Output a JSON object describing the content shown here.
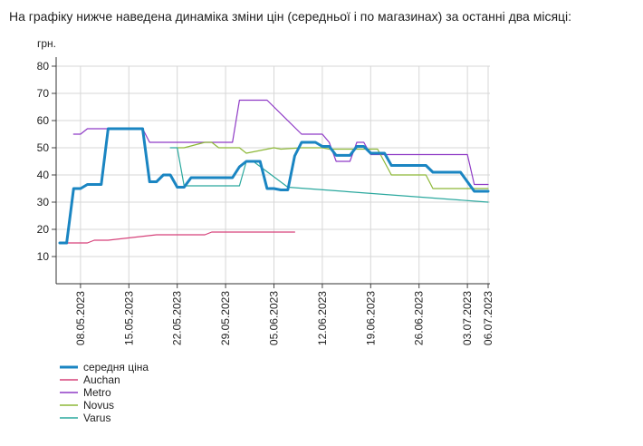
{
  "intro_text": "На графіку нижче наведена динаміка зміни цін (середньої і по магазинах) за останні два місяці:",
  "chart_data": {
    "type": "line",
    "ylabel": "грн.",
    "ylim": [
      0,
      80
    ],
    "yticks": [
      10,
      20,
      30,
      40,
      50,
      60,
      70,
      80
    ],
    "x_start": "2023-05-05",
    "x_end": "2023-07-06",
    "xticks": [
      "08.05.2023",
      "15.05.2023",
      "22.05.2023",
      "29.05.2023",
      "05.06.2023",
      "12.06.2023",
      "19.06.2023",
      "26.06.2023",
      "03.07.2023",
      "06.07.2023"
    ],
    "grid": true,
    "legend_position": "bottom-left",
    "colors": {
      "середня ціна": "#1a85c2",
      "Auchan": "#d6427a",
      "Metro": "#8f3bc6",
      "Novus": "#8db838",
      "Varus": "#2aa89e"
    },
    "series": [
      {
        "name": "середня ціна",
        "x": [
          "2023-05-05",
          "2023-05-06",
          "2023-05-07",
          "2023-05-08",
          "2023-05-09",
          "2023-05-10",
          "2023-05-11",
          "2023-05-12",
          "2023-05-13",
          "2023-05-14",
          "2023-05-15",
          "2023-05-16",
          "2023-05-17",
          "2023-05-18",
          "2023-05-19",
          "2023-05-20",
          "2023-05-21",
          "2023-05-22",
          "2023-05-23",
          "2023-05-24",
          "2023-05-25",
          "2023-05-26",
          "2023-05-27",
          "2023-05-28",
          "2023-05-29",
          "2023-05-30",
          "2023-05-31",
          "2023-06-01",
          "2023-06-02",
          "2023-06-03",
          "2023-06-04",
          "2023-06-05",
          "2023-06-06",
          "2023-06-07",
          "2023-06-08",
          "2023-06-09",
          "2023-06-10",
          "2023-06-11",
          "2023-06-12",
          "2023-06-13",
          "2023-06-14",
          "2023-06-15",
          "2023-06-16",
          "2023-06-17",
          "2023-06-18",
          "2023-06-19",
          "2023-06-20",
          "2023-06-21",
          "2023-06-22",
          "2023-06-23",
          "2023-06-24",
          "2023-06-25",
          "2023-06-26",
          "2023-06-27",
          "2023-06-28",
          "2023-06-29",
          "2023-06-30",
          "2023-07-01",
          "2023-07-02",
          "2023-07-03",
          "2023-07-04",
          "2023-07-05",
          "2023-07-06"
        ],
        "values": [
          15,
          15,
          35,
          35,
          36.5,
          36.5,
          36.5,
          57,
          57,
          57,
          57,
          57,
          57,
          37.5,
          37.5,
          40,
          40,
          35.5,
          35.5,
          39,
          39,
          39,
          39,
          39,
          39,
          39,
          43,
          45,
          45,
          45,
          35,
          35,
          34.5,
          34.5,
          47,
          52,
          52,
          52,
          50.5,
          50.5,
          47.2,
          47.2,
          47.2,
          50.5,
          50.5,
          48,
          48,
          48,
          43.5,
          43.5,
          43.5,
          43.5,
          43.5,
          43.5,
          41,
          41,
          41,
          41,
          41,
          37.5,
          34,
          34,
          34
        ]
      },
      {
        "name": "Auchan",
        "x": [
          "2023-05-05",
          "2023-05-08",
          "2023-05-09",
          "2023-05-10",
          "2023-05-11",
          "2023-05-12",
          "2023-05-19",
          "2023-05-26",
          "2023-05-27",
          "2023-05-28",
          "2023-06-08"
        ],
        "values": [
          15,
          15,
          15,
          16,
          16,
          16,
          18,
          18,
          19,
          19,
          19
        ]
      },
      {
        "name": "Metro",
        "x": [
          "2023-05-07",
          "2023-05-08",
          "2023-05-09",
          "2023-05-17",
          "2023-05-18",
          "2023-05-30",
          "2023-05-31",
          "2023-06-03",
          "2023-06-04",
          "2023-06-09",
          "2023-06-12",
          "2023-06-13",
          "2023-06-14",
          "2023-06-16",
          "2023-06-17",
          "2023-06-18",
          "2023-06-19",
          "2023-06-20",
          "2023-06-21",
          "2023-07-03",
          "2023-07-04",
          "2023-07-05",
          "2023-07-06"
        ],
        "values": [
          55,
          55,
          57,
          57,
          52,
          52,
          67.5,
          67.5,
          67.5,
          55,
          55,
          52,
          45,
          45,
          52,
          52,
          47.5,
          47.5,
          47.5,
          47.5,
          36.5,
          36.5,
          36.5
        ]
      },
      {
        "name": "Novus",
        "x": [
          "2023-05-22",
          "2023-05-23",
          "2023-05-26",
          "2023-05-27",
          "2023-05-28",
          "2023-05-29",
          "2023-05-30",
          "2023-05-31",
          "2023-06-01",
          "2023-06-05",
          "2023-06-06",
          "2023-06-09",
          "2023-06-10",
          "2023-06-12",
          "2023-06-13",
          "2023-06-16",
          "2023-06-17",
          "2023-06-19",
          "2023-06-20",
          "2023-06-22",
          "2023-06-26",
          "2023-06-27",
          "2023-06-28",
          "2023-07-04",
          "2023-07-05",
          "2023-07-06"
        ],
        "values": [
          50,
          50,
          52,
          52,
          50,
          50,
          50,
          50,
          48,
          50,
          49.5,
          50,
          50,
          50,
          49.5,
          49.5,
          49.5,
          49.5,
          49.5,
          40,
          40,
          40,
          35,
          35,
          35,
          35
        ]
      },
      {
        "name": "Varus",
        "x": [
          "2023-05-21",
          "2023-05-22",
          "2023-05-23",
          "2023-05-24",
          "2023-05-31",
          "2023-06-01",
          "2023-06-02",
          "2023-06-07",
          "2023-07-06"
        ],
        "values": [
          50,
          50,
          36,
          36,
          36,
          45,
          45,
          35.5,
          30
        ]
      }
    ]
  }
}
